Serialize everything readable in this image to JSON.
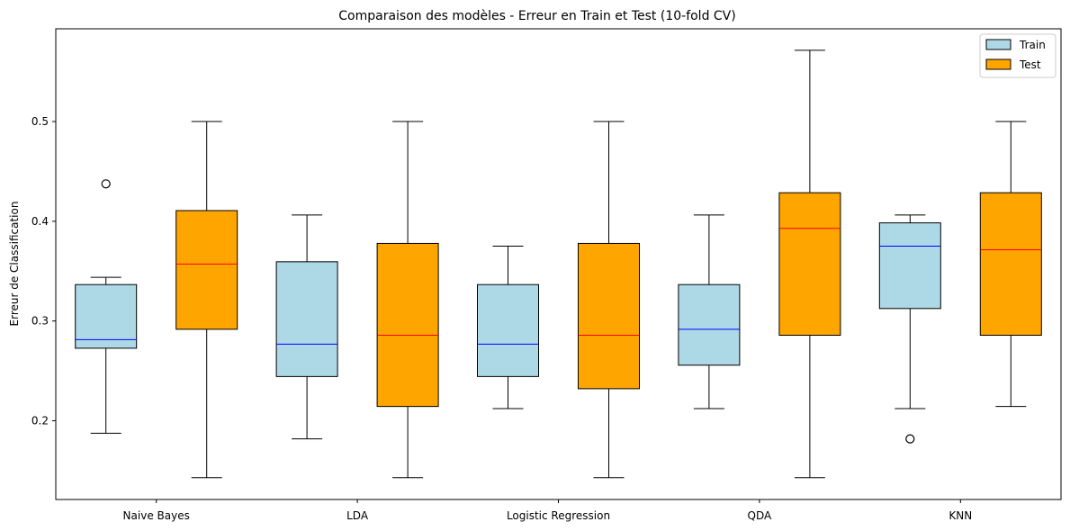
{
  "chart_data": {
    "type": "box",
    "title": "Comparaison des modèles - Erreur en Train et Test (10-fold CV)",
    "xlabel": "",
    "ylabel": "Erreur de Classification",
    "categories": [
      "Naive Bayes",
      "LDA",
      "Logistic Regression",
      "QDA",
      "KNN"
    ],
    "ylim": [
      0.121,
      0.593
    ],
    "yticks": [
      0.2,
      0.3,
      0.4,
      0.5
    ],
    "ytick_labels": [
      "0.2",
      "0.3",
      "0.4",
      "0.5"
    ],
    "grid": false,
    "legend_position": "top-right",
    "series": [
      {
        "name": "Train",
        "fill_color": "#add8e6",
        "median_color": "#0000ff",
        "boxes": [
          {
            "whisker_low": 0.1875,
            "q1": 0.2727,
            "median": 0.2813,
            "q3": 0.3365,
            "whisker_high": 0.3438,
            "outliers": [
              0.4375
            ]
          },
          {
            "whisker_low": 0.1818,
            "q1": 0.2443,
            "median": 0.2768,
            "q3": 0.3594,
            "whisker_high": 0.4063,
            "outliers": []
          },
          {
            "whisker_low": 0.2121,
            "q1": 0.2443,
            "median": 0.2768,
            "q3": 0.3365,
            "whisker_high": 0.375,
            "outliers": []
          },
          {
            "whisker_low": 0.2121,
            "q1": 0.2557,
            "median": 0.2917,
            "q3": 0.3365,
            "whisker_high": 0.4063,
            "outliers": []
          },
          {
            "whisker_low": 0.2121,
            "q1": 0.3125,
            "median": 0.375,
            "q3": 0.3984,
            "whisker_high": 0.4063,
            "outliers": [
              0.1818
            ]
          }
        ]
      },
      {
        "name": "Test",
        "fill_color": "#ffa500",
        "median_color": "#ff0000",
        "boxes": [
          {
            "whisker_low": 0.1429,
            "q1": 0.2917,
            "median": 0.3571,
            "q3": 0.4107,
            "whisker_high": 0.5,
            "outliers": []
          },
          {
            "whisker_low": 0.1429,
            "q1": 0.2143,
            "median": 0.2857,
            "q3": 0.3778,
            "whisker_high": 0.5,
            "outliers": []
          },
          {
            "whisker_low": 0.1429,
            "q1": 0.2321,
            "median": 0.2857,
            "q3": 0.3778,
            "whisker_high": 0.5,
            "outliers": []
          },
          {
            "whisker_low": 0.1429,
            "q1": 0.2857,
            "median": 0.3929,
            "q3": 0.4286,
            "whisker_high": 0.5714,
            "outliers": []
          },
          {
            "whisker_low": 0.2143,
            "q1": 0.2857,
            "median": 0.3714,
            "q3": 0.4286,
            "whisker_high": 0.5,
            "outliers": []
          }
        ]
      }
    ]
  }
}
